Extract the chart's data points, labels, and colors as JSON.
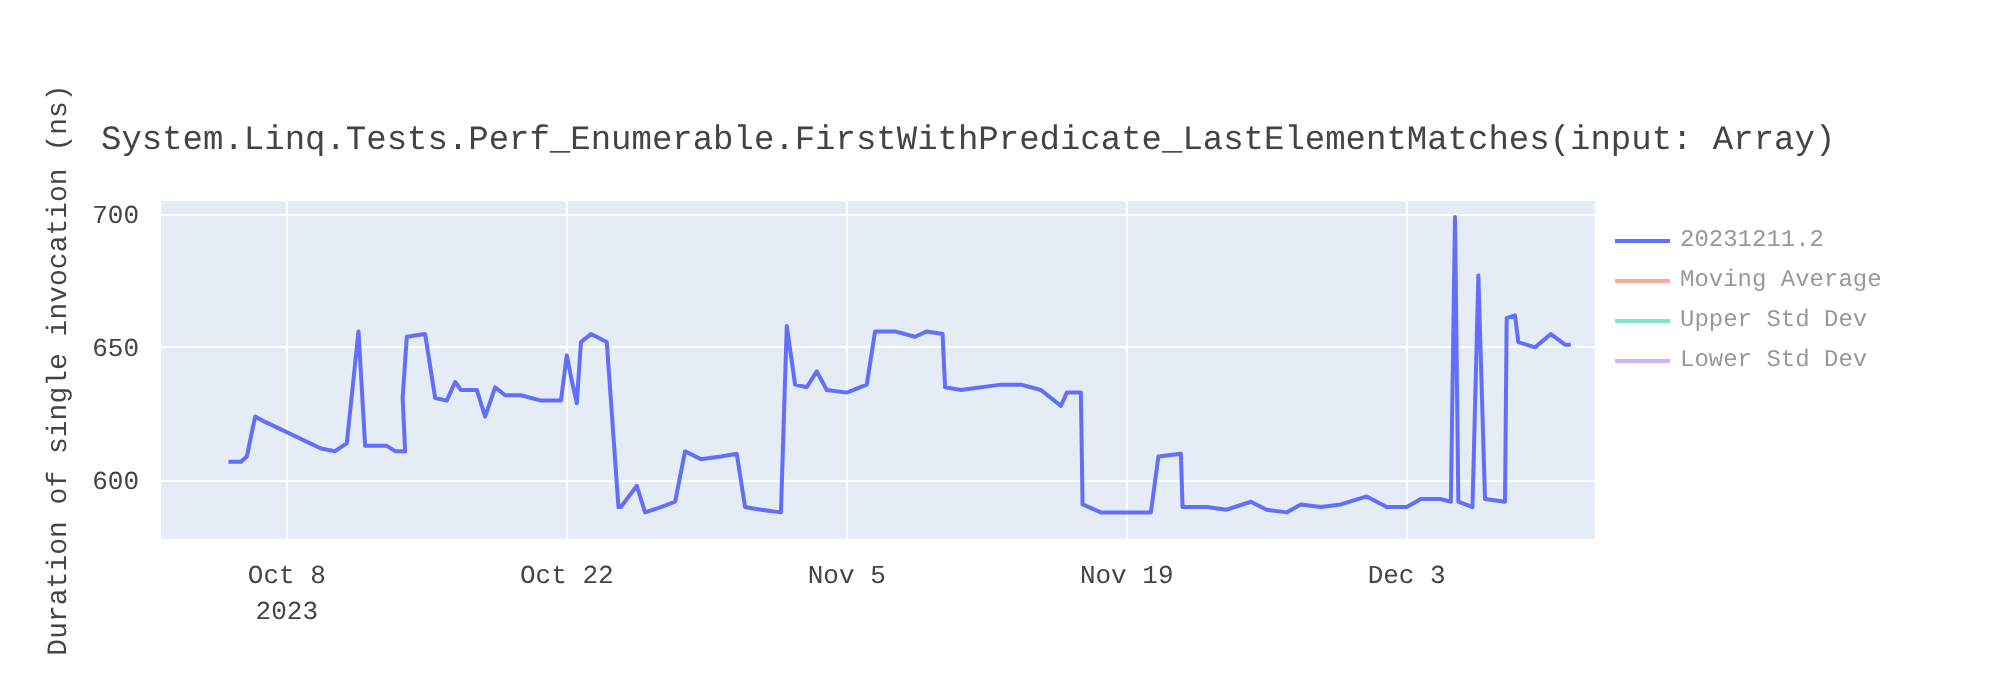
{
  "chart_data": {
    "type": "line",
    "title": "System.Linq.Tests.Perf_Enumerable.FirstWithPredicate_LastElementMatches(input: Array)",
    "ylabel": "Duration of single invocation (ns)",
    "xlim": [
      "2023-10-01T17:00",
      "2023-12-12T10:00"
    ],
    "ylim": [
      578,
      705
    ],
    "xticks": [
      {
        "value": "2023-10-08",
        "label": "Oct 8\n2023"
      },
      {
        "value": "2023-10-22",
        "label": "Oct 22"
      },
      {
        "value": "2023-11-05",
        "label": "Nov 5"
      },
      {
        "value": "2023-11-19",
        "label": "Nov 19"
      },
      {
        "value": "2023-12-03",
        "label": "Dec 3"
      }
    ],
    "yticks": [
      600,
      650,
      700
    ],
    "grid": true,
    "legend": "top right",
    "marker": "none",
    "line_style": "solid",
    "series": [
      {
        "name": "20231211.2",
        "color": "#636efa",
        "x": [
          "2023-10-05T02:00",
          "2023-10-05T17:00",
          "2023-10-06T00:00",
          "2023-10-06T10:00",
          "2023-10-06T22:00",
          "2023-10-09T17:00",
          "2023-10-10T10:00",
          "2023-10-11T00:00",
          "2023-10-11T14:00",
          "2023-10-11T22:00",
          "2023-10-12T07:00",
          "2023-10-13T00:00",
          "2023-10-13T10:00",
          "2023-10-13T22:00",
          "2023-10-13T19:00",
          "2023-10-14T00:00",
          "2023-10-14T22:00",
          "2023-10-15T10:00",
          "2023-10-16T00:00",
          "2023-10-16T10:00",
          "2023-10-16T17:00",
          "2023-10-17T12:00",
          "2023-10-17T22:00",
          "2023-10-18T10:00",
          "2023-10-18T22:00",
          "2023-10-19T17:00",
          "2023-10-20T17:00",
          "2023-10-21T17:00",
          "2023-10-22T00:00",
          "2023-10-22T05:00",
          "2023-10-22T12:00",
          "2023-10-22T17:00",
          "2023-10-23T05:00",
          "2023-10-24T00:00",
          "2023-10-24T14:00",
          "2023-10-24T17:00",
          "2023-10-25T12:00",
          "2023-10-25T22:00",
          "2023-10-26T17:00",
          "2023-10-27T10:00",
          "2023-10-27T22:00",
          "2023-10-28T17:00",
          "2023-10-29T17:00",
          "2023-10-30T12:00",
          "2023-10-30T22:00",
          "2023-10-31T17:00",
          "2023-11-01T17:00",
          "2023-11-02T00:00",
          "2023-11-02T10:00",
          "2023-11-03T00:00",
          "2023-11-03T12:00",
          "2023-11-04T00:00",
          "2023-11-05T00:00",
          "2023-11-06T00:00",
          "2023-11-06T10:00",
          "2023-11-07T10:00",
          "2023-11-08T10:00",
          "2023-11-09T00:00",
          "2023-11-09T19:00",
          "2023-11-09T22:00",
          "2023-11-10T17:00",
          "2023-11-12T17:00",
          "2023-11-13T17:00",
          "2023-11-14T17:00",
          "2023-11-15T17:00",
          "2023-11-16T00:00",
          "2023-11-16T17:00",
          "2023-11-16T19:00",
          "2023-11-17T17:00",
          "2023-11-19T00:00",
          "2023-11-20T05:00",
          "2023-11-20T14:00",
          "2023-11-21T17:00",
          "2023-11-21T19:00",
          "2023-11-23T00:00",
          "2023-11-24T00:00",
          "2023-11-25T05:00",
          "2023-11-26T00:00",
          "2023-11-27T00:00",
          "2023-11-27T17:00",
          "2023-11-28T17:00",
          "2023-11-29T17:00",
          "2023-12-01T00:00",
          "2023-12-02T00:00",
          "2023-12-03T00:00",
          "2023-12-03T17:00",
          "2023-12-04T17:00",
          "2023-12-05T05:00",
          "2023-12-05T10:00",
          "2023-12-05T14:00",
          "2023-12-06T07:00",
          "2023-12-06T14:00",
          "2023-12-06T22:00",
          "2023-12-07T22:00",
          "2023-12-08T00:00",
          "2023-12-08T10:00",
          "2023-12-08T14:00",
          "2023-12-09T10:00",
          "2023-12-10T05:00",
          "2023-12-10T22:00",
          "2023-12-11T05:00"
        ],
        "values": [
          607,
          607,
          609,
          624,
          622,
          612,
          611,
          614,
          656,
          613,
          613,
          613,
          611,
          611,
          631,
          654,
          655,
          631,
          630,
          637,
          634,
          634,
          624,
          635,
          632,
          632,
          630,
          630,
          647,
          639,
          629,
          652,
          655,
          652,
          590,
          590,
          598,
          588,
          590,
          592,
          611,
          608,
          609,
          610,
          590,
          589,
          588,
          658,
          636,
          635,
          641,
          634,
          633,
          636,
          656,
          656,
          654,
          656,
          655,
          635,
          634,
          636,
          636,
          634,
          628,
          633,
          633,
          591,
          588,
          588,
          588,
          609,
          610,
          590,
          590,
          589,
          592,
          589,
          588,
          591,
          590,
          591,
          594,
          590,
          590,
          593,
          593,
          592,
          699,
          592,
          590,
          677,
          593,
          592,
          661,
          662,
          652,
          650,
          655,
          651,
          651
        ]
      },
      {
        "name": "Moving Average",
        "color": "#ef553b"
      },
      {
        "name": "Upper Std Dev",
        "color": "#00cc96"
      },
      {
        "name": "Lower Std Dev",
        "color": "#ab63fa"
      }
    ]
  }
}
